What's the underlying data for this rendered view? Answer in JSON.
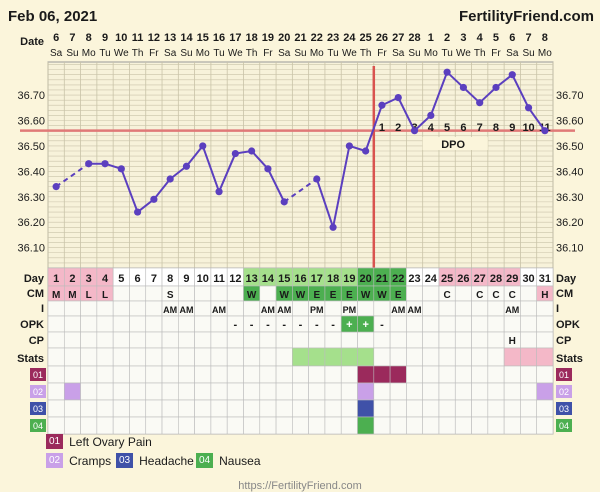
{
  "header": {
    "date": "Feb 06, 2021",
    "brand": "FertilityFriend.com"
  },
  "footer": {
    "url": "https://FertilityFriend.com"
  },
  "colors": {
    "bg": "#fbf5db",
    "line": "#5b3fbf",
    "coverline": "#e07a78",
    "green": "#4caf50",
    "lightgreen": "#a5e08c",
    "pink": "#f4b8c8",
    "maroon": "#9b2a5c",
    "lilac": "#c9a0e8",
    "navy": "#3f51a8"
  },
  "legend": [
    {
      "code": "01",
      "label": "Left Ovary Pain",
      "color": "#9b2a5c"
    },
    {
      "code": "02",
      "label": "Cramps",
      "color": "#c9a0e8"
    },
    {
      "code": "03",
      "label": "Headache",
      "color": "#3f51a8"
    },
    {
      "code": "04",
      "label": "Nausea",
      "color": "#4caf50"
    }
  ],
  "chart_data": {
    "type": "line",
    "title": "",
    "ylabel": "",
    "ylim": [
      36.02,
      36.83
    ],
    "yticks": [
      36.1,
      36.2,
      36.3,
      36.4,
      36.5,
      36.6,
      36.7
    ],
    "coverline": 36.56,
    "ovulation_day": 20,
    "date_label": "Date",
    "day_label": "Day",
    "dpo_label": "DPO",
    "dates": [
      "6",
      "7",
      "8",
      "9",
      "10",
      "11",
      "12",
      "13",
      "14",
      "15",
      "16",
      "17",
      "18",
      "19",
      "20",
      "21",
      "22",
      "23",
      "24",
      "25",
      "26",
      "27",
      "28",
      "1",
      "2",
      "3",
      "4",
      "5",
      "6",
      "7",
      "8"
    ],
    "weekdays": [
      "Sa",
      "Su",
      "Mo",
      "Tu",
      "We",
      "Th",
      "Fr",
      "Sa",
      "Su",
      "Mo",
      "Tu",
      "We",
      "Th",
      "Fr",
      "Sa",
      "Su",
      "Mo",
      "Tu",
      "We",
      "Th",
      "Fr",
      "Sa",
      "Su",
      "Mo",
      "Tu",
      "We",
      "Th",
      "Fr",
      "Sa",
      "Su",
      "Mo"
    ],
    "dpo": [
      "",
      "",
      "",
      "",
      "",
      "",
      "",
      "",
      "",
      "",
      "",
      "",
      "",
      "",
      "",
      "",
      "",
      "",
      "",
      "",
      "1",
      "2",
      "3",
      "4",
      "5",
      "6",
      "7",
      "8",
      "9",
      "10",
      "11"
    ],
    "series": [
      {
        "values": [
          36.34,
          null,
          36.43,
          36.43,
          36.41,
          36.24,
          36.29,
          36.37,
          36.42,
          36.5,
          36.32,
          36.47,
          36.48,
          36.41,
          36.28,
          null,
          36.37,
          36.18,
          36.5,
          36.48,
          36.66,
          36.69,
          36.56,
          36.62,
          36.79,
          36.73,
          36.67,
          36.73,
          36.78,
          36.65,
          36.56
        ]
      }
    ],
    "dashed_segments": [
      [
        0,
        2
      ],
      [
        14,
        16
      ]
    ],
    "cm_label": "CM",
    "cm": [
      "M",
      "M",
      "L",
      "L",
      "",
      "",
      "",
      "S",
      "",
      "",
      "",
      "",
      "W",
      "",
      "W",
      "W",
      "E",
      "E",
      "E",
      "W",
      "W",
      "E",
      "",
      "",
      "C",
      "",
      "C",
      "C",
      "C",
      "",
      "H"
    ],
    "cm_color": [
      "pink",
      "pink",
      "pink",
      "pink",
      "",
      "",
      "",
      "",
      "",
      "",
      "",
      "",
      "green",
      "",
      "green",
      "green",
      "green",
      "green",
      "green",
      "green",
      "green",
      "green",
      "",
      "",
      "",
      "",
      "",
      "",
      "",
      "",
      "pink"
    ],
    "i_label": "I",
    "intercourse": [
      "",
      "",
      "",
      "",
      "",
      "",
      "",
      "AM",
      "AM",
      "",
      "AM",
      "",
      "",
      "AM",
      "AM",
      "",
      "PM",
      "",
      "PM",
      "",
      "",
      "AM",
      "AM",
      "",
      "",
      "",
      "",
      "",
      "AM",
      "",
      ""
    ],
    "opk_label": "OPK",
    "opk": [
      "",
      "",
      "",
      "",
      "",
      "",
      "",
      "",
      "",
      "",
      "",
      "-",
      "-",
      "-",
      "-",
      "-",
      "-",
      "-",
      "+",
      "+",
      "-",
      "",
      "",
      "",
      "",
      "",
      "",
      "",
      "",
      "",
      ""
    ],
    "cp_label": "CP",
    "cp": [
      "",
      "",
      "",
      "",
      "",
      "",
      "",
      "",
      "",
      "",
      "",
      "",
      "",
      "",
      "",
      "",
      "",
      "",
      "",
      "",
      "",
      "",
      "",
      "",
      "",
      "",
      "",
      "",
      "H",
      "",
      ""
    ],
    "stats_label": "Stats",
    "stats": [
      "",
      "",
      "",
      "",
      "",
      "",
      "",
      "",
      "",
      "",
      "",
      "",
      "",
      "",
      "",
      "lightgreen",
      "lightgreen",
      "lightgreen",
      "lightgreen",
      "lightgreen",
      "",
      "",
      "",
      "",
      "",
      "",
      "",
      "",
      "pink",
      "pink",
      "pink"
    ],
    "symptom_rows": [
      {
        "code": "01",
        "color": "maroon",
        "days": [
          19,
          20,
          21
        ]
      },
      {
        "code": "02",
        "color": "lilac",
        "days": [
          1,
          19,
          30
        ]
      },
      {
        "code": "03",
        "color": "navy",
        "days": [
          19
        ]
      },
      {
        "code": "04",
        "color": "green",
        "days": [
          19
        ]
      }
    ]
  }
}
